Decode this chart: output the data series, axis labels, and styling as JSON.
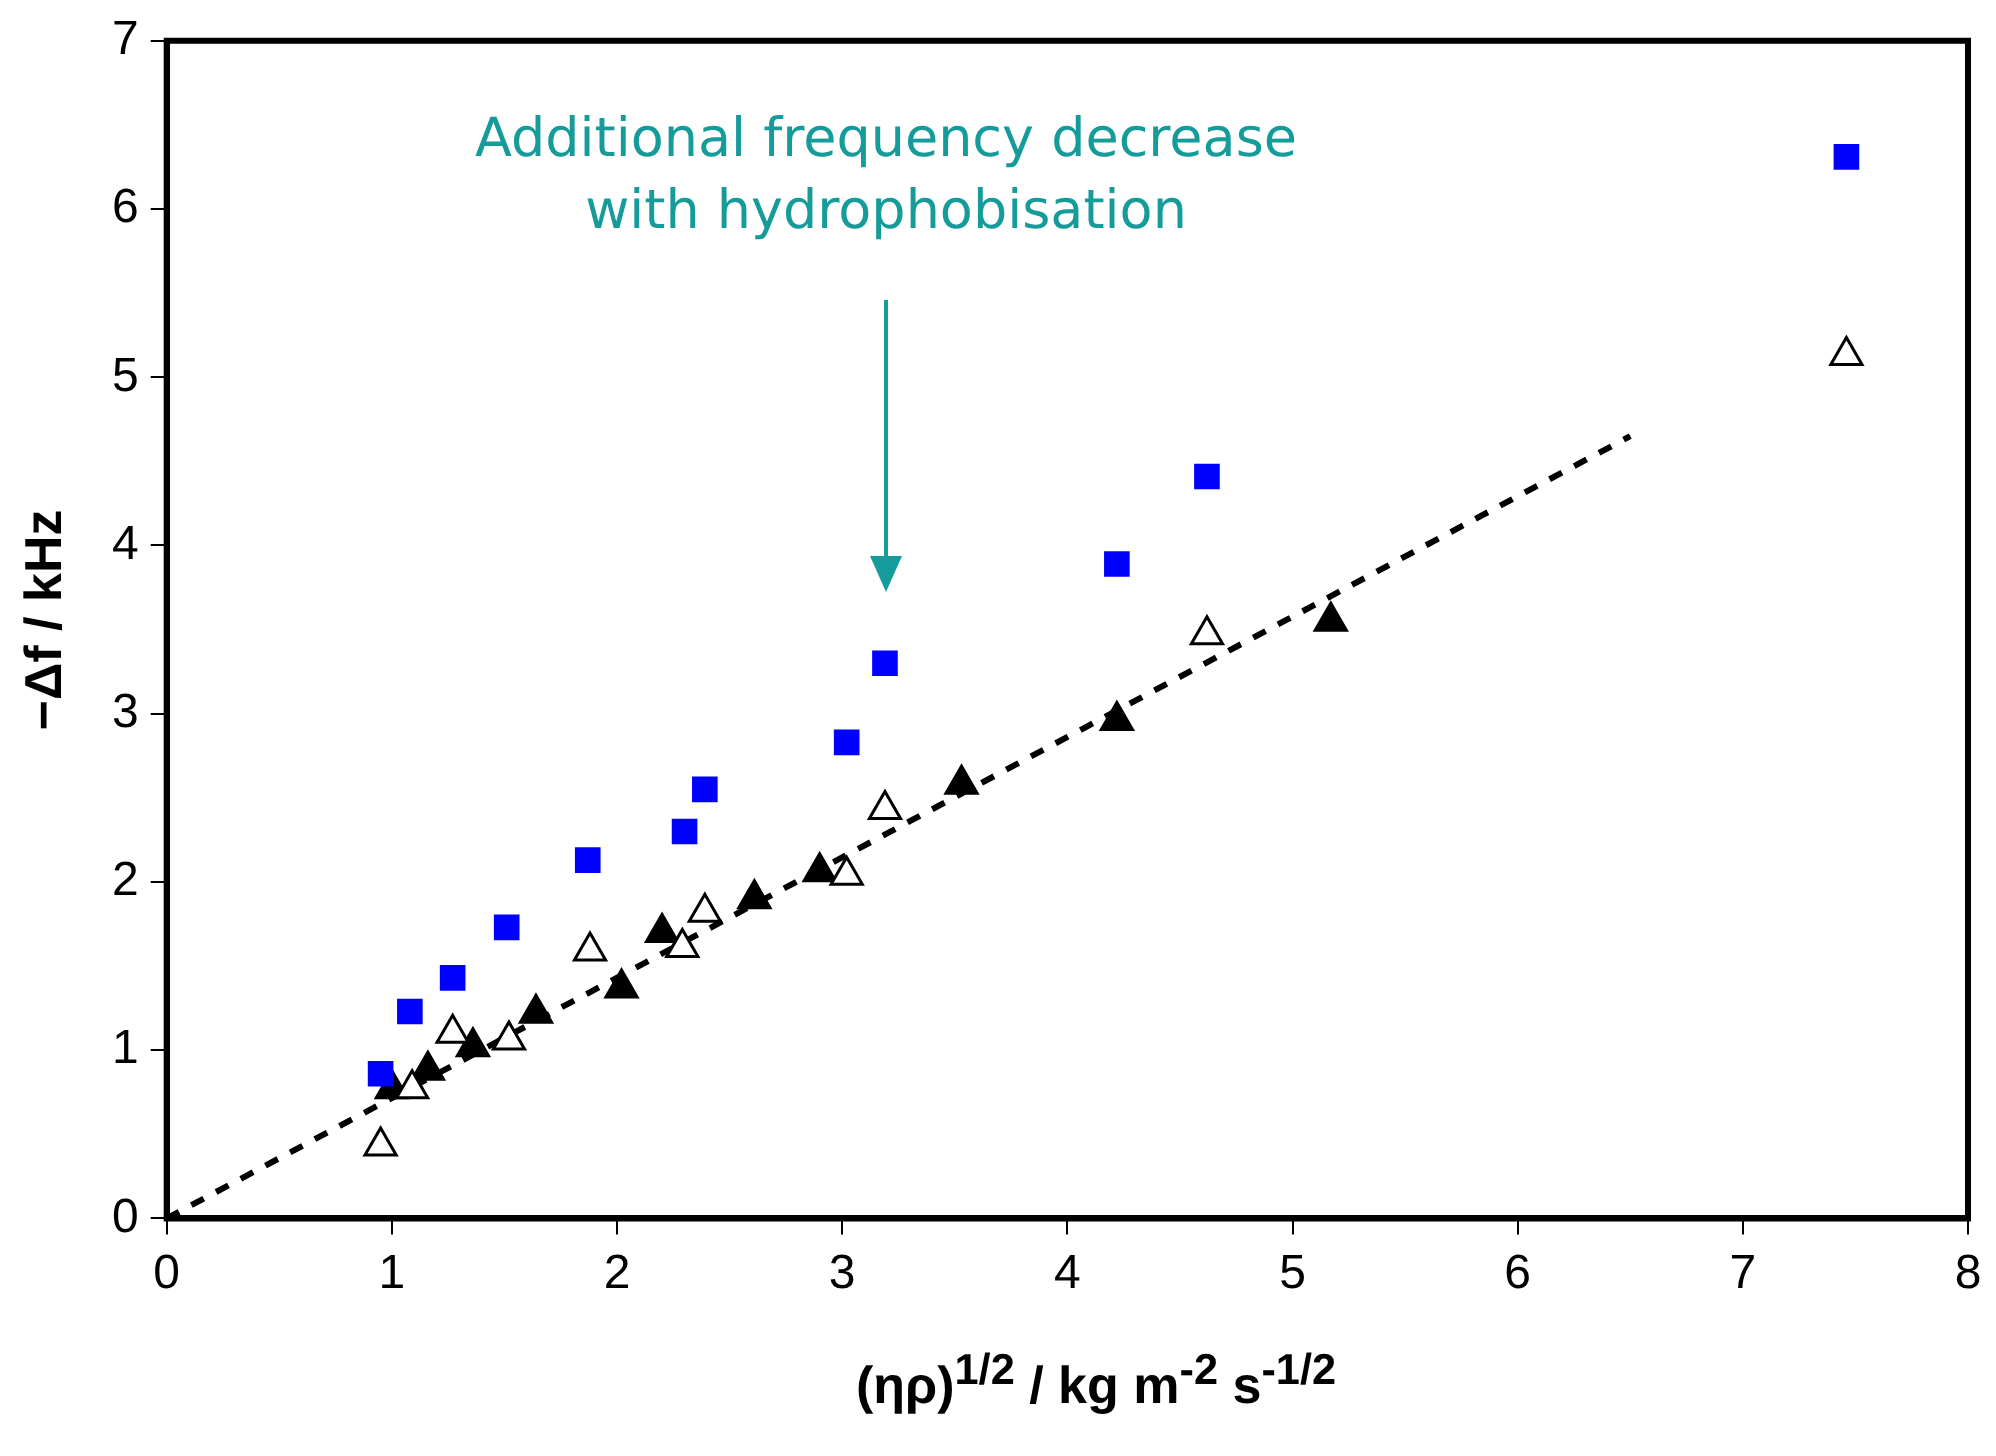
{
  "chart_data": {
    "type": "scatter",
    "xlabel": "(ηρ)$^{1/2}$ / kg m$^{-2}$ s$^{-1/2}$",
    "ylabel": "−Δf / kHz",
    "xlim": [
      0,
      8
    ],
    "xticks": [
      0,
      1,
      2,
      3,
      4,
      5,
      6,
      7,
      8
    ],
    "ylim": [
      0,
      7
    ],
    "yticks": [
      0,
      1,
      2,
      3,
      4,
      5,
      6,
      7
    ],
    "grid": false,
    "legend": false,
    "annotations": [
      "Additional frequency decrease with hydrophobisation"
    ],
    "series": [
      {
        "marker": "square",
        "color": "#0000ff",
        "x": [
          0.95,
          1.08,
          1.27,
          1.51,
          1.87,
          2.3,
          2.39,
          3.02,
          3.19,
          4.22,
          4.62,
          7.46
        ],
        "values": [
          0.86,
          1.23,
          1.43,
          1.73,
          2.13,
          2.3,
          2.55,
          2.83,
          3.3,
          3.89,
          4.41,
          6.31
        ]
      },
      {
        "marker": "triangle",
        "color": "#ffffff",
        "x": [
          0.95,
          1.09,
          1.27,
          1.52,
          1.88,
          2.29,
          2.39,
          3.02,
          3.19,
          4.62,
          7.46
        ],
        "values": [
          0.43,
          0.77,
          1.1,
          1.06,
          1.59,
          1.61,
          1.82,
          2.04,
          2.43,
          3.47,
          5.13
        ]
      },
      {
        "marker": "triangle",
        "color": "#000000",
        "x": [
          1.0,
          1.16,
          1.36,
          1.64,
          2.02,
          2.2,
          2.61,
          2.9,
          3.53,
          4.22,
          5.17
        ],
        "values": [
          0.77,
          0.88,
          1.02,
          1.22,
          1.37,
          1.7,
          1.9,
          2.06,
          2.58,
          2.96,
          3.55
        ]
      },
      {
        "type": "line",
        "marker": "none",
        "line_style": "dashed",
        "color": "#000000",
        "x": [
          0,
          6.5
        ],
        "values": [
          0,
          4.65
        ]
      }
    ]
  }
}
